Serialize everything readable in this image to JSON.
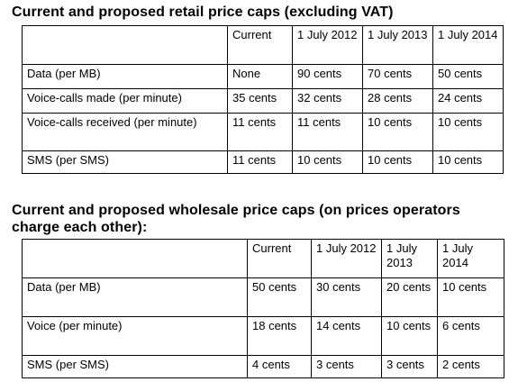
{
  "retail": {
    "title": "Current and proposed retail price caps (excluding VAT)",
    "columns": [
      "",
      "Current",
      "1 July 2012",
      "1 July 2013",
      "1 July 2014"
    ],
    "rows": [
      [
        "Data (per MB)",
        "None",
        "90 cents",
        "70 cents",
        "50 cents"
      ],
      [
        "Voice-calls made (per minute)",
        "35 cents",
        "32 cents",
        "28 cents",
        "24 cents"
      ],
      [
        "Voice-calls received (per minute)",
        "11 cents",
        "11 cents",
        "10 cents",
        "10 cents"
      ],
      [
        "SMS (per SMS)",
        "11 cents",
        "10 cents",
        "10 cents",
        "10 cents"
      ]
    ]
  },
  "wholesale": {
    "title": "Current and proposed wholesale price caps (on prices operators charge each other):",
    "columns": [
      "",
      "Current",
      "1 July 2012",
      "1 July 2013",
      "1 July 2014"
    ],
    "rows": [
      [
        "Data (per MB)",
        "50 cents",
        "30 cents",
        "20 cents",
        "10 cents"
      ],
      [
        "Voice (per minute)",
        "18 cents",
        "14 cents",
        "10 cents",
        "6 cents"
      ],
      [
        "SMS (per SMS)",
        "4 cents",
        "3 cents",
        "3 cents",
        "2 cents"
      ]
    ]
  }
}
